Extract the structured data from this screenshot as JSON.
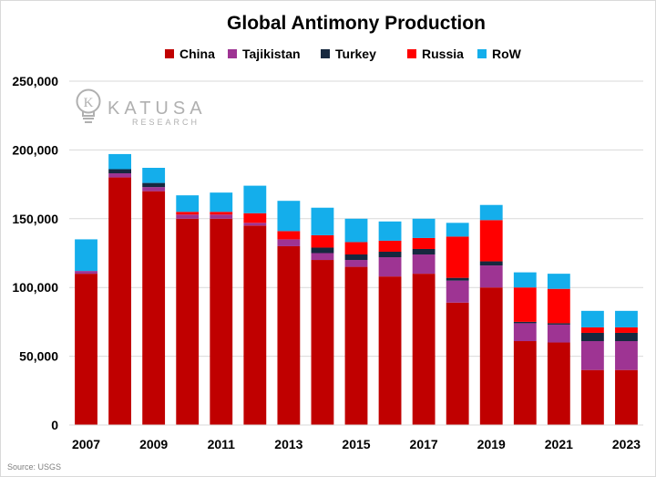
{
  "chart_data": {
    "type": "bar",
    "stacked": true,
    "title": "Global Antimony Production",
    "categories": [
      "2007",
      "2008",
      "2009",
      "2010",
      "2011",
      "2012",
      "2013",
      "2014",
      "2015",
      "2016",
      "2017",
      "2018",
      "2019",
      "2020",
      "2021",
      "2022",
      "2023"
    ],
    "x_tick_labels": [
      "2007",
      "2009",
      "2011",
      "2013",
      "2015",
      "2017",
      "2019",
      "2021",
      "2023"
    ],
    "y_tick_labels": [
      "0",
      "50,000",
      "100,000",
      "150,000",
      "200,000",
      "250,000"
    ],
    "ylim": [
      0,
      250000
    ],
    "grid": true,
    "legend_position": "top",
    "series": [
      {
        "name": "China",
        "color": "#C00000",
        "values": [
          110000,
          180000,
          170000,
          150000,
          150000,
          145000,
          130000,
          120000,
          115000,
          108000,
          110000,
          89000,
          100000,
          61000,
          60000,
          40000,
          40000
        ]
      },
      {
        "name": "Tajikistan",
        "color": "#9E3493",
        "values": [
          2000,
          3000,
          3000,
          3000,
          3000,
          2000,
          5000,
          5000,
          5000,
          14000,
          14000,
          16000,
          16000,
          13000,
          13000,
          21000,
          21000
        ]
      },
      {
        "name": "Turkey",
        "color": "#16283F",
        "values": [
          0,
          3000,
          3000,
          0,
          0,
          0,
          0,
          4000,
          4000,
          4000,
          4000,
          2000,
          3000,
          1000,
          1000,
          6000,
          6000
        ]
      },
      {
        "name": "Russia",
        "color": "#FF0000",
        "values": [
          0,
          0,
          0,
          2000,
          2000,
          7000,
          6000,
          9000,
          9000,
          8000,
          8000,
          30000,
          30000,
          25000,
          25000,
          4000,
          4000
        ]
      },
      {
        "name": "RoW",
        "color": "#14AEEB",
        "values": [
          23000,
          11000,
          11000,
          12000,
          14000,
          20000,
          22000,
          20000,
          17000,
          14000,
          14000,
          10000,
          11000,
          11000,
          11000,
          12000,
          12000
        ]
      }
    ]
  },
  "watermark": {
    "initial": "K",
    "name": "KATUSA",
    "sub": "RESEARCH"
  },
  "source": "Source: USGS",
  "colors": {
    "gridline": "#d9d9d9",
    "axis": "#d9d9d9",
    "watermark": "#b0b0b0"
  }
}
